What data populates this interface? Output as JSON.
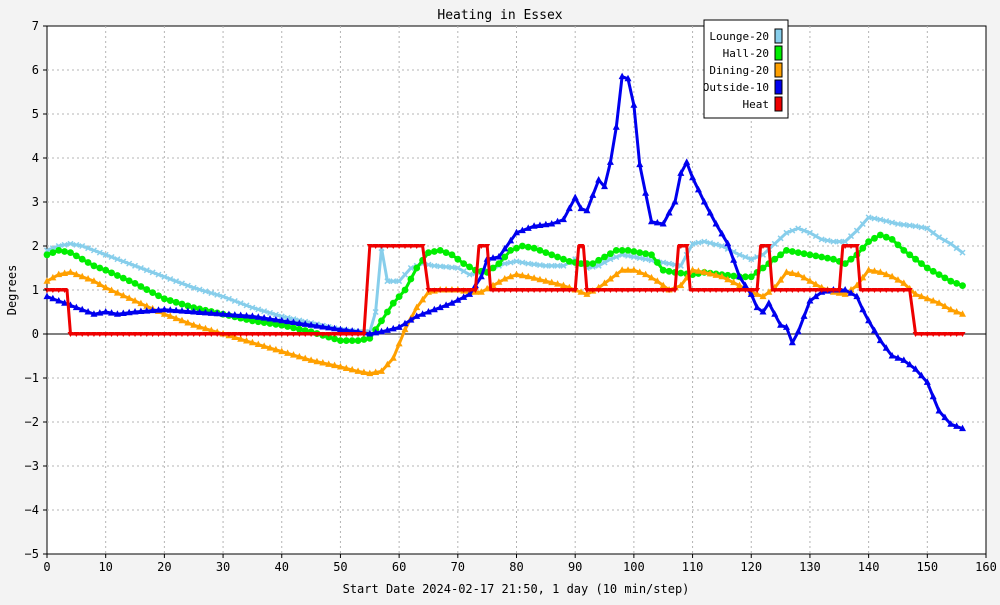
{
  "chart_data": {
    "type": "line",
    "title": "Heating in Essex",
    "xlabel": "Start Date 2024-02-17 21:50, 1 day (10 min/step)",
    "ylabel": "Degrees",
    "xlim": [
      0,
      160
    ],
    "ylim": [
      -5,
      7
    ],
    "x_ticks": [
      "0",
      "10",
      "20",
      "30",
      "40",
      "50",
      "60",
      "70",
      "80",
      "90",
      "100",
      "110",
      "120",
      "130",
      "140",
      "150",
      "160"
    ],
    "y_ticks": [
      "−5",
      "−4",
      "−3",
      "−2",
      "−1",
      "0",
      "1",
      "2",
      "3",
      "4",
      "5",
      "6",
      "7"
    ],
    "grid": true,
    "legend_position": "top-right",
    "series": [
      {
        "name": "Lounge-20",
        "color": "#87ceeb",
        "marker": "x",
        "x": [
          0,
          2,
          4,
          6,
          8,
          10,
          15,
          20,
          25,
          30,
          35,
          40,
          45,
          50,
          53,
          55,
          56,
          57,
          58,
          60,
          62,
          64,
          66,
          70,
          72,
          74,
          76,
          78,
          80,
          82,
          85,
          88,
          90,
          92,
          94,
          96,
          98,
          100,
          102,
          104,
          106,
          108,
          110,
          112,
          115,
          118,
          120,
          122,
          124,
          126,
          128,
          130,
          132,
          134,
          136,
          138,
          140,
          142,
          145,
          148,
          150,
          152,
          154,
          156
        ],
        "values": [
          1.9,
          2.0,
          2.05,
          2.0,
          1.9,
          1.8,
          1.55,
          1.3,
          1.05,
          0.85,
          0.6,
          0.4,
          0.25,
          0.1,
          0.05,
          0.05,
          0.5,
          1.95,
          1.2,
          1.2,
          1.5,
          1.6,
          1.55,
          1.5,
          1.35,
          1.4,
          1.5,
          1.6,
          1.65,
          1.6,
          1.55,
          1.55,
          1.7,
          1.5,
          1.55,
          1.7,
          1.8,
          1.75,
          1.7,
          1.65,
          1.6,
          1.55,
          2.05,
          2.1,
          2.0,
          1.8,
          1.7,
          1.8,
          2.05,
          2.3,
          2.4,
          2.3,
          2.15,
          2.1,
          2.1,
          2.35,
          2.65,
          2.6,
          2.5,
          2.45,
          2.4,
          2.2,
          2.05,
          1.85
        ]
      },
      {
        "name": "Hall-20",
        "color": "#00ee00",
        "marker": "circle",
        "x": [
          0,
          2,
          4,
          6,
          8,
          10,
          15,
          20,
          25,
          30,
          35,
          40,
          45,
          50,
          53,
          55,
          57,
          59,
          61,
          63,
          65,
          67,
          69,
          71,
          73,
          75,
          77,
          79,
          81,
          83,
          85,
          87,
          89,
          91,
          93,
          95,
          97,
          99,
          101,
          103,
          105,
          107,
          110,
          112,
          115,
          118,
          120,
          122,
          124,
          126,
          128,
          130,
          132,
          134,
          136,
          138,
          140,
          142,
          144,
          146,
          150,
          152,
          154,
          156
        ],
        "values": [
          1.8,
          1.9,
          1.85,
          1.7,
          1.55,
          1.45,
          1.15,
          0.8,
          0.6,
          0.45,
          0.3,
          0.2,
          0.05,
          -0.15,
          -0.15,
          -0.1,
          0.3,
          0.7,
          1.0,
          1.5,
          1.85,
          1.9,
          1.8,
          1.6,
          1.45,
          1.4,
          1.6,
          1.9,
          2.0,
          1.95,
          1.85,
          1.75,
          1.65,
          1.6,
          1.6,
          1.75,
          1.9,
          1.9,
          1.85,
          1.8,
          1.45,
          1.4,
          1.35,
          1.4,
          1.35,
          1.3,
          1.3,
          1.5,
          1.7,
          1.9,
          1.85,
          1.8,
          1.75,
          1.7,
          1.6,
          1.8,
          2.1,
          2.25,
          2.15,
          1.9,
          1.5,
          1.35,
          1.2,
          1.1
        ]
      },
      {
        "name": "Dining-20",
        "color": "#ffa000",
        "marker": "triangle",
        "x": [
          0,
          2,
          4,
          6,
          8,
          10,
          15,
          20,
          25,
          30,
          35,
          40,
          45,
          50,
          53,
          55,
          57,
          59,
          61,
          63,
          65,
          67,
          70,
          72,
          74,
          76,
          78,
          80,
          82,
          85,
          88,
          90,
          92,
          94,
          96,
          98,
          100,
          102,
          104,
          106,
          108,
          110,
          112,
          115,
          118,
          120,
          122,
          124,
          126,
          128,
          130,
          132,
          134,
          136,
          138,
          140,
          142,
          144,
          146,
          148,
          150,
          152,
          154,
          156
        ],
        "values": [
          1.2,
          1.35,
          1.4,
          1.3,
          1.2,
          1.05,
          0.75,
          0.45,
          0.2,
          0.0,
          -0.2,
          -0.4,
          -0.6,
          -0.75,
          -0.85,
          -0.9,
          -0.85,
          -0.55,
          0.1,
          0.6,
          0.95,
          1.0,
          1.0,
          0.95,
          0.95,
          1.1,
          1.25,
          1.35,
          1.3,
          1.2,
          1.1,
          1.0,
          0.9,
          1.05,
          1.25,
          1.45,
          1.45,
          1.35,
          1.2,
          1.0,
          1.1,
          1.45,
          1.4,
          1.3,
          1.1,
          0.95,
          0.85,
          1.05,
          1.4,
          1.35,
          1.2,
          1.05,
          0.95,
          0.9,
          1.1,
          1.45,
          1.4,
          1.3,
          1.15,
          0.9,
          0.8,
          0.7,
          0.55,
          0.45
        ]
      },
      {
        "name": "Outside-10",
        "color": "#0000ee",
        "marker": "triangle",
        "x": [
          0,
          2,
          4,
          6,
          8,
          10,
          12,
          15,
          20,
          25,
          30,
          35,
          40,
          45,
          50,
          53,
          55,
          57,
          60,
          63,
          66,
          69,
          72,
          74,
          75,
          77,
          80,
          83,
          86,
          88,
          90,
          91,
          92,
          94,
          95,
          96,
          97,
          98,
          99,
          100,
          101,
          103,
          105,
          106,
          107,
          108,
          109,
          110,
          112,
          114,
          116,
          118,
          120,
          121,
          122,
          123,
          125,
          126,
          127,
          128,
          130,
          132,
          134,
          136,
          138,
          139,
          140,
          142,
          144,
          146,
          148,
          150,
          152,
          154,
          156
        ],
        "values": [
          0.85,
          0.75,
          0.65,
          0.55,
          0.45,
          0.5,
          0.45,
          0.5,
          0.55,
          0.5,
          0.45,
          0.4,
          0.3,
          0.2,
          0.1,
          0.05,
          0.0,
          0.05,
          0.15,
          0.4,
          0.55,
          0.7,
          0.9,
          1.3,
          1.7,
          1.75,
          2.3,
          2.45,
          2.5,
          2.6,
          3.1,
          2.85,
          2.8,
          3.5,
          3.35,
          3.9,
          4.7,
          5.85,
          5.8,
          5.2,
          3.85,
          2.55,
          2.5,
          2.75,
          3.0,
          3.65,
          3.9,
          3.55,
          3.0,
          2.5,
          2.05,
          1.3,
          0.9,
          0.6,
          0.5,
          0.7,
          0.2,
          0.15,
          -0.2,
          0.05,
          0.75,
          0.95,
          1.0,
          1.0,
          0.85,
          0.55,
          0.3,
          -0.15,
          -0.5,
          -0.6,
          -0.8,
          -1.1,
          -1.75,
          -2.05,
          -2.15
        ]
      },
      {
        "name": "Heat",
        "color": "#ee0000",
        "marker": "triangle-down",
        "x": [
          0,
          3.4,
          4,
          54,
          55,
          64,
          65,
          73,
          73.6,
          75,
          75.6,
          90,
          90.6,
          91.4,
          92,
          107,
          107.6,
          109,
          109.6,
          121,
          121.6,
          123,
          123.6,
          135,
          135.6,
          138,
          138.6,
          147,
          148,
          156
        ],
        "values": [
          1,
          1,
          0,
          0,
          2,
          2,
          1,
          1,
          2,
          2,
          1,
          1,
          2,
          2,
          1,
          1,
          2,
          2,
          1,
          1,
          2,
          2,
          1,
          1,
          2,
          2,
          1,
          1,
          0,
          0
        ]
      }
    ]
  }
}
